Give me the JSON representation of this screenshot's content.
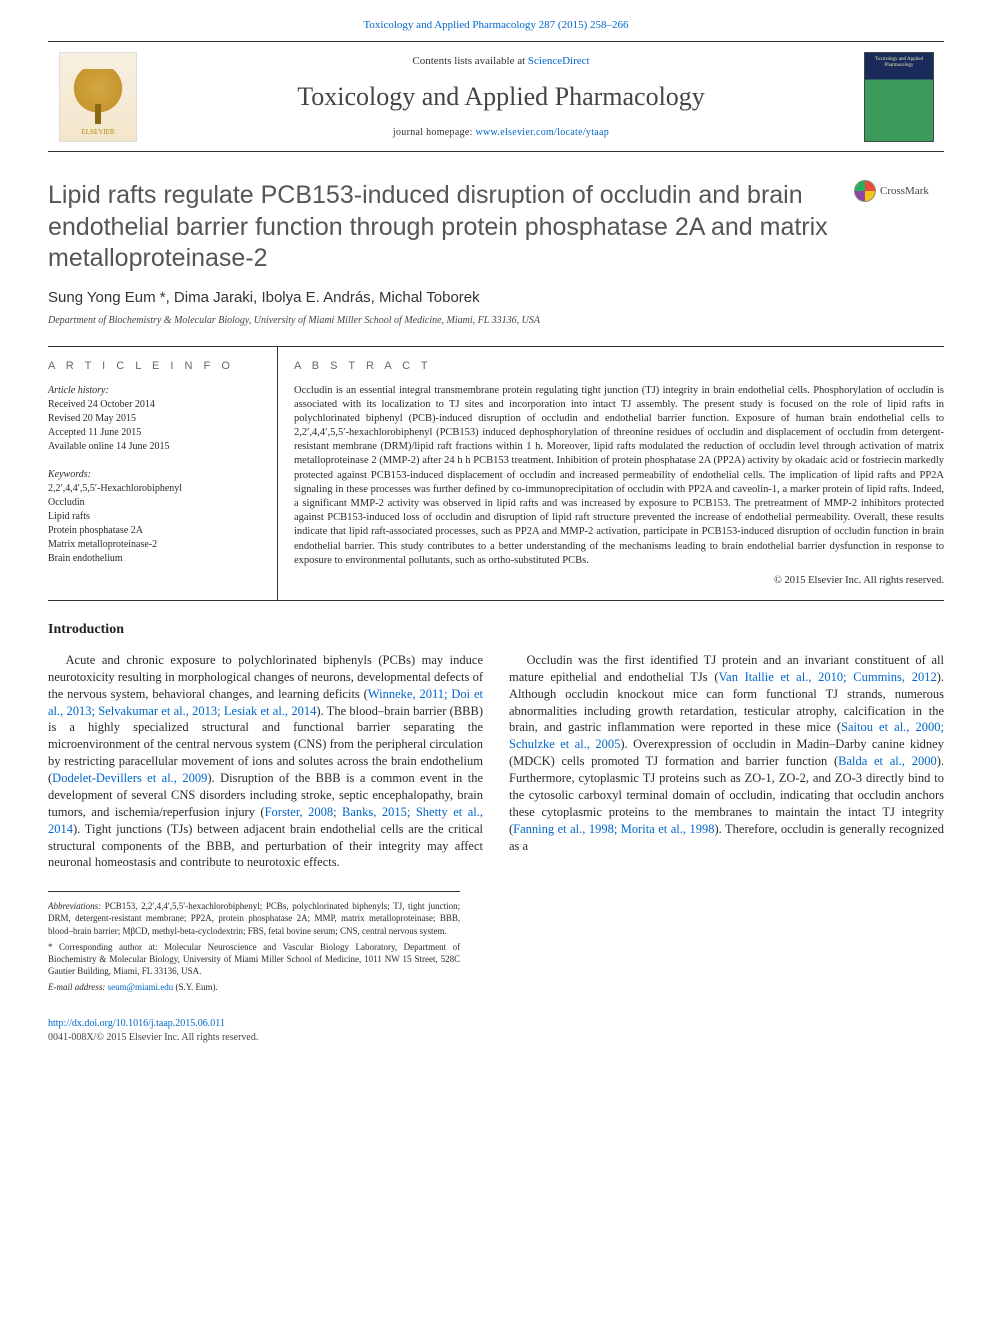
{
  "top_ref": "Toxicology and Applied Pharmacology 287 (2015) 258–266",
  "masthead": {
    "contents_pre": "Contents lists available at ",
    "contents_link": "ScienceDirect",
    "journal_name": "Toxicology and Applied Pharmacology",
    "homepage_pre": "journal homepage: ",
    "homepage": "www.elsevier.com/locate/ytaap",
    "elsevier_label": "ELSEVIER",
    "cover_text": "Toxicology and Applied Pharmacology"
  },
  "crossmark_label": "CrossMark",
  "title": "Lipid rafts regulate PCB153-induced disruption of occludin and brain endothelial barrier function through protein phosphatase 2A and matrix metalloproteinase-2",
  "authors": "Sung Yong Eum *, Dima Jaraki, Ibolya E. András, Michal Toborek",
  "affiliation": "Department of Biochemistry & Molecular Biology, University of Miami Miller School of Medicine, Miami, FL 33136, USA",
  "article_info": {
    "heading": "A R T I C L E   I N F O",
    "history_label": "Article history:",
    "history": [
      "Received 24 October 2014",
      "Revised 20 May 2015",
      "Accepted 11 June 2015",
      "Available online 14 June 2015"
    ],
    "keywords_label": "Keywords:",
    "keywords": [
      "2,2′,4,4′,5,5′-Hexachlorobiphenyl",
      "Occludin",
      "Lipid rafts",
      "Protein phosphatase 2A",
      "Matrix metalloproteinase-2",
      "Brain endothelium"
    ]
  },
  "abstract": {
    "heading": "A B S T R A C T",
    "text": "Occludin is an essential integral transmembrane protein regulating tight junction (TJ) integrity in brain endothelial cells. Phosphorylation of occludin is associated with its localization to TJ sites and incorporation into intact TJ assembly. The present study is focused on the role of lipid rafts in polychlorinated biphenyl (PCB)-induced disruption of occludin and endothelial barrier function. Exposure of human brain endothelial cells to 2,2′,4,4′,5,5′-hexachlorobiphenyl (PCB153) induced dephosphorylation of threonine residues of occludin and displacement of occludin from detergent-resistant membrane (DRM)/lipid raft fractions within 1 h. Moreover, lipid rafts modulated the reduction of occludin level through activation of matrix metalloproteinase 2 (MMP-2) after 24 h h PCB153 treatment. Inhibition of protein phosphatase 2A (PP2A) activity by okadaic acid or fostriecin markedly protected against PCB153-induced displacement of occludin and increased permeability of endothelial cells. The implication of lipid rafts and PP2A signaling in these processes was further defined by co-immunoprecipitation of occludin with PP2A and caveolin-1, a marker protein of lipid rafts. Indeed, a significant MMP-2 activity was observed in lipid rafts and was increased by exposure to PCB153. The pretreatment of MMP-2 inhibitors protected against PCB153-induced loss of occludin and disruption of lipid raft structure prevented the increase of endothelial permeability. Overall, these results indicate that lipid raft-associated processes, such as PP2A and MMP-2 activation, participate in PCB153-induced disruption of occludin function in brain endothelial barrier. This study contributes to a better understanding of the mechanisms leading to brain endothelial barrier dysfunction in response to exposure to environmental pollutants, such as ortho-substituted PCBs.",
    "copyright": "© 2015 Elsevier Inc. All rights reserved."
  },
  "intro": {
    "heading": "Introduction",
    "p1a": "Acute and chronic exposure to polychlorinated biphenyls (PCBs) may induce neurotoxicity resulting in morphological changes of neurons, developmental defects of the nervous system, behavioral changes, and learning deficits (",
    "p1ref1": "Winneke, 2011; Doi et al., 2013; Selvakumar et al., 2013; Lesiak et al., 2014",
    "p1b": "). The blood–brain barrier (BBB) is a highly specialized structural and functional barrier separating the microenvironment of the central nervous system (CNS) from the peripheral circulation by restricting paracellular movement of ions and solutes across the brain endothelium (",
    "p1ref2": "Dodelet-Devillers et al., 2009",
    "p1c": "). Disruption of the BBB is a common event in the development of several CNS disorders including stroke, septic encephalopathy, brain tumors, and ischemia/reperfusion injury (",
    "p1ref3": "Forster, 2008; Banks, 2015; Shetty et al., 2014",
    "p1d": "). Tight junctions (TJs) between adjacent brain endothelial cells are the critical structural components of the BBB, and perturbation of their integrity may affect neuronal homeostasis and contribute to neurotoxic effects.",
    "p2a": "Occludin was the first identified TJ protein and an invariant constituent of all mature epithelial and endothelial TJs (",
    "p2ref1": "Van Itallie et al., 2010; Cummins, 2012",
    "p2b": "). Although occludin knockout mice can form functional TJ strands, numerous abnormalities including growth retardation, testicular atrophy, calcification in the brain, and gastric inflammation were reported in these mice (",
    "p2ref2": "Saitou et al., 2000; Schulzke et al., 2005",
    "p2c": "). Overexpression of occludin in Madin–Darby canine kidney (MDCK) cells promoted TJ formation and barrier function (",
    "p2ref3": "Balda et al., 2000",
    "p2d": "). Furthermore, cytoplasmic TJ proteins such as ZO-1, ZO-2, and ZO-3 directly bind to the cytosolic carboxyl terminal domain of occludin, indicating that occludin anchors these cytoplasmic proteins to the membranes to maintain the intact TJ integrity (",
    "p2ref4": "Fanning et al., 1998; Morita et al., 1998",
    "p2e": "). Therefore, occludin is generally recognized as a"
  },
  "footnotes": {
    "abbrev_label": "Abbreviations:",
    "abbrev": " PCB153, 2,2′,4,4′,5,5′-hexachlorobiphenyl; PCBs, polychlorinated biphenyls; TJ, tight junction; DRM, detergent-resistant membrane; PP2A, protein phosphatase 2A; MMP, matrix metalloproteinase; BBB, blood–brain barrier; MβCD, methyl-beta-cyclodextrin; FBS, fetal bovine serum; CNS, central nervous system.",
    "corr_label": "* Corresponding author at:",
    "corr": " Molecular Neuroscience and Vascular Biology Laboratory, Department of Biochemistry & Molecular Biology, University of Miami Miller School of Medicine, 1011 NW 15 Street, 528C Gautier Building, Miami, FL 33136, USA.",
    "email_label": "E-mail address: ",
    "email": "seum@miami.edu",
    "email_tail": " (S.Y. Eum)."
  },
  "bottom": {
    "doi": "http://dx.doi.org/10.1016/j.taap.2015.06.011",
    "issn_line": "0041-008X/© 2015 Elsevier Inc. All rights reserved."
  },
  "colors": {
    "link": "#0066cc",
    "text": "#2a2a2a",
    "heading_gray": "#555555",
    "rule": "#333333"
  }
}
